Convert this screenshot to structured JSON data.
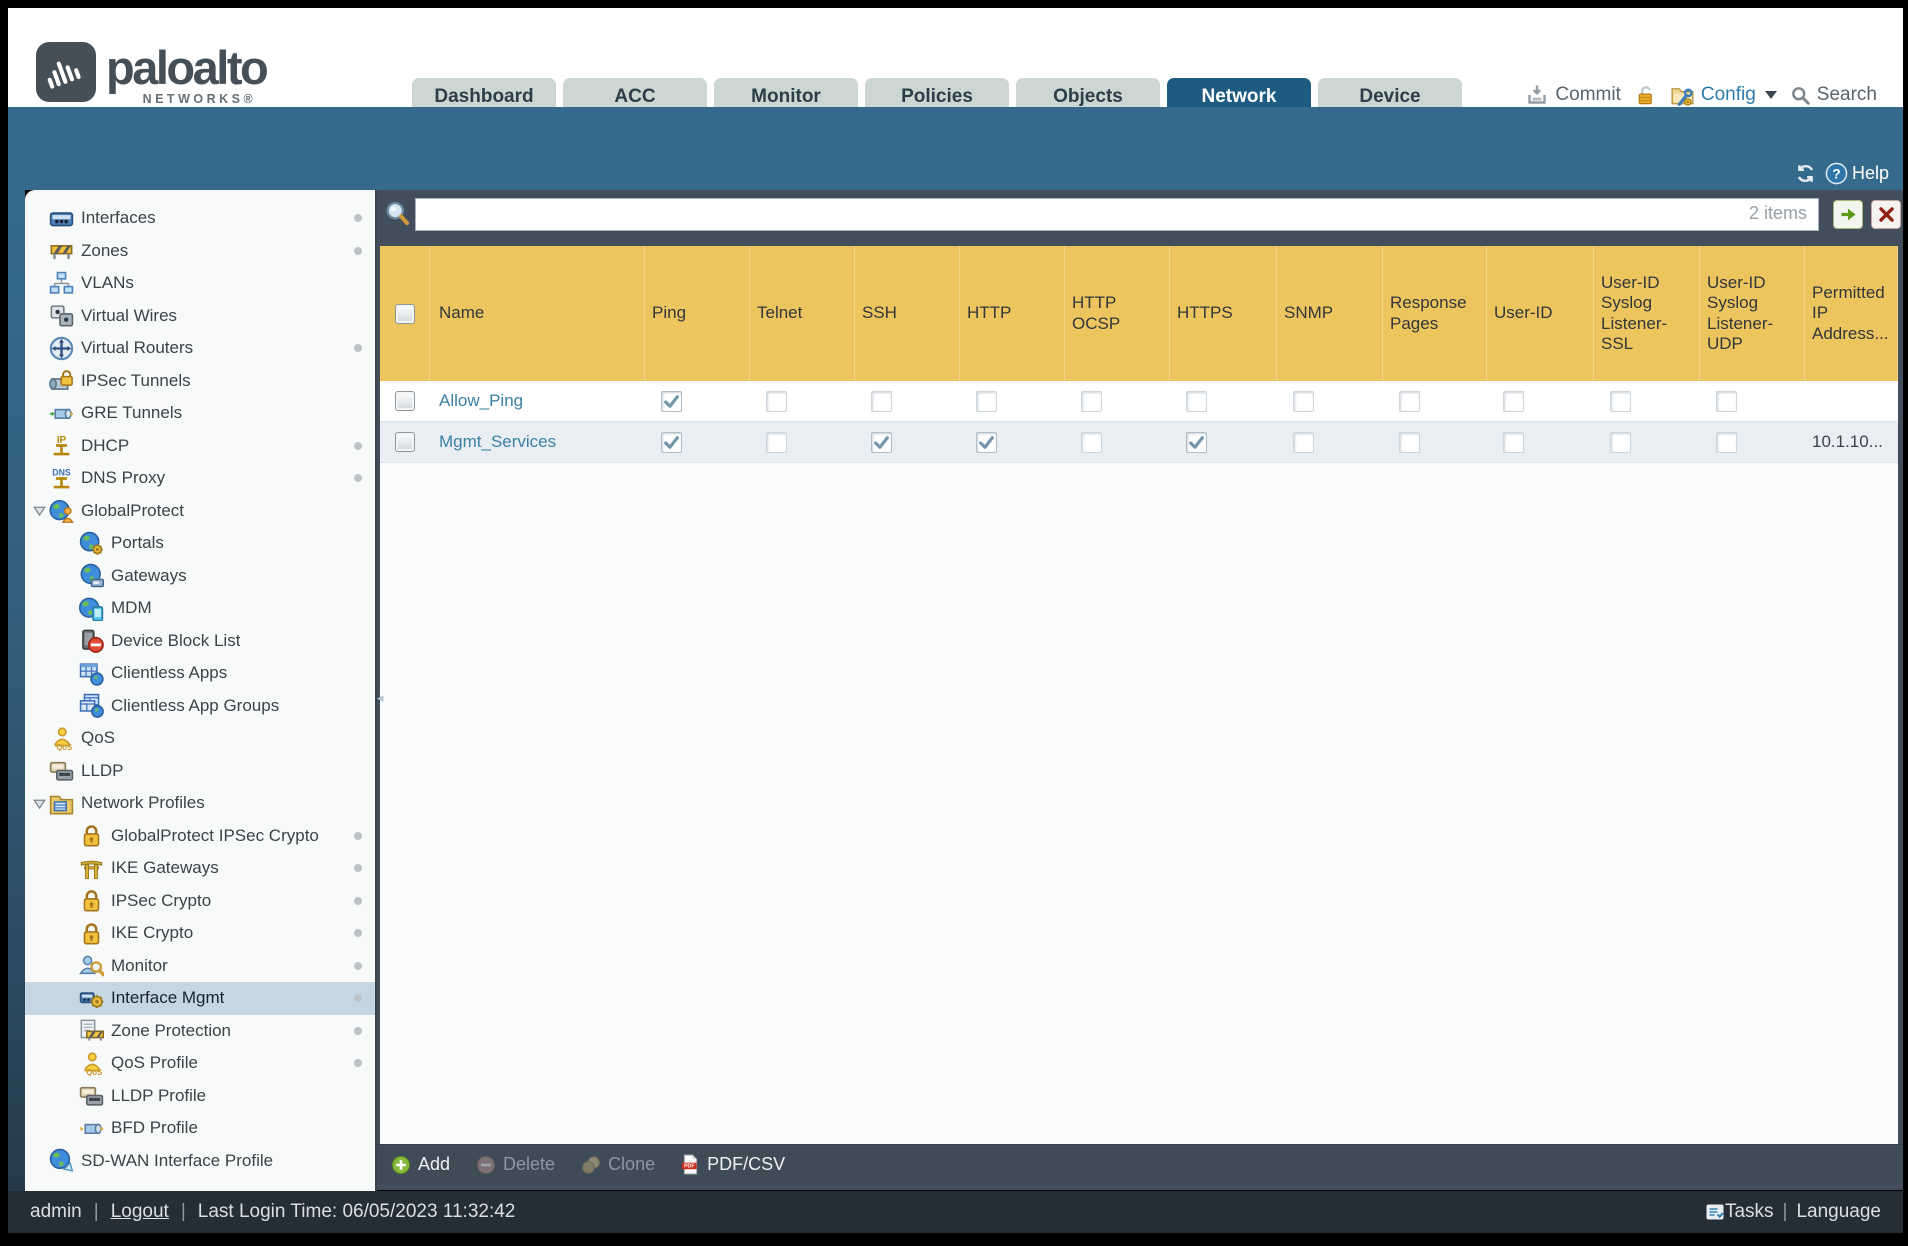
{
  "brand": {
    "name": "paloalto",
    "sub": "NETWORKS®"
  },
  "tabs": [
    {
      "label": "Dashboard"
    },
    {
      "label": "ACC"
    },
    {
      "label": "Monitor"
    },
    {
      "label": "Policies"
    },
    {
      "label": "Objects"
    },
    {
      "label": "Network",
      "active": true
    },
    {
      "label": "Device"
    }
  ],
  "top_actions": {
    "commit": "Commit",
    "config": "Config",
    "search": "Search"
  },
  "band": {
    "help": "Help"
  },
  "sidebar": {
    "items": [
      {
        "label": "Interfaces",
        "icon": "ethernet",
        "dot": true
      },
      {
        "label": "Zones",
        "icon": "barrier",
        "dot": true
      },
      {
        "label": "VLANs",
        "icon": "vlans"
      },
      {
        "label": "Virtual Wires",
        "icon": "vwires"
      },
      {
        "label": "Virtual Routers",
        "icon": "vrouters",
        "dot": true
      },
      {
        "label": "IPSec Tunnels",
        "icon": "ipsec-tunnel"
      },
      {
        "label": "GRE Tunnels",
        "icon": "gre-tunnel"
      },
      {
        "label": "DHCP",
        "icon": "dhcp",
        "dot": true
      },
      {
        "label": "DNS Proxy",
        "icon": "dns-proxy",
        "dot": true
      },
      {
        "label": "GlobalProtect",
        "icon": "globalprotect",
        "expander": true
      },
      {
        "label": "Portals",
        "icon": "portals",
        "level": 1
      },
      {
        "label": "Gateways",
        "icon": "gateways",
        "level": 1
      },
      {
        "label": "MDM",
        "icon": "mdm",
        "level": 1
      },
      {
        "label": "Device Block List",
        "icon": "device-block",
        "level": 1
      },
      {
        "label": "Clientless Apps",
        "icon": "clientless-apps",
        "level": 1
      },
      {
        "label": "Clientless App Groups",
        "icon": "clientless-groups",
        "level": 1
      },
      {
        "label": "QoS",
        "icon": "qos"
      },
      {
        "label": "LLDP",
        "icon": "lldp"
      },
      {
        "label": "Network Profiles",
        "icon": "net-profiles",
        "expander": true
      },
      {
        "label": "GlobalProtect IPSec Crypto",
        "icon": "padlock",
        "level": 1,
        "dot": true
      },
      {
        "label": "IKE Gateways",
        "icon": "ike",
        "level": 1,
        "dot": true
      },
      {
        "label": "IPSec Crypto",
        "icon": "padlock",
        "level": 1,
        "dot": true
      },
      {
        "label": "IKE Crypto",
        "icon": "padlock",
        "level": 1,
        "dot": true
      },
      {
        "label": "Monitor",
        "icon": "monitor-search",
        "level": 1,
        "dot": true
      },
      {
        "label": "Interface Mgmt",
        "icon": "iface-mgmt",
        "level": 1,
        "selected": true,
        "dot": true
      },
      {
        "label": "Zone Protection",
        "icon": "zone-protect",
        "level": 1,
        "dot": true
      },
      {
        "label": "QoS Profile",
        "icon": "qos",
        "level": 1,
        "dot": true
      },
      {
        "label": "LLDP Profile",
        "icon": "lldp",
        "level": 1
      },
      {
        "label": "BFD Profile",
        "icon": "bfd",
        "level": 1
      },
      {
        "label": "SD-WAN Interface Profile",
        "icon": "sdwan"
      }
    ]
  },
  "search": {
    "count": "2 items"
  },
  "table": {
    "columns": [
      {
        "id": "select",
        "label": ""
      },
      {
        "id": "name",
        "label": "Name"
      },
      {
        "id": "ping",
        "label": "Ping"
      },
      {
        "id": "telnet",
        "label": "Telnet"
      },
      {
        "id": "ssh",
        "label": "SSH"
      },
      {
        "id": "http",
        "label": "HTTP"
      },
      {
        "id": "http_ocsp",
        "label": "HTTP OCSP"
      },
      {
        "id": "https",
        "label": "HTTPS"
      },
      {
        "id": "snmp",
        "label": "SNMP"
      },
      {
        "id": "response_pages",
        "label": "Response Pages"
      },
      {
        "id": "user_id",
        "label": "User-ID"
      },
      {
        "id": "uid_syslog_ssl",
        "label": "User-ID Syslog Listener-SSL"
      },
      {
        "id": "uid_syslog_udp",
        "label": "User-ID Syslog Listener-UDP"
      },
      {
        "id": "permitted_ip",
        "label": "Permitted IP Address..."
      }
    ],
    "rows": [
      {
        "name": "Allow_Ping",
        "checks": {
          "ping": true,
          "telnet": false,
          "ssh": false,
          "http": false,
          "http_ocsp": false,
          "https": false,
          "snmp": false,
          "response_pages": false,
          "user_id": false,
          "uid_syslog_ssl": false,
          "uid_syslog_udp": false
        },
        "permitted_ip": ""
      },
      {
        "name": "Mgmt_Services",
        "checks": {
          "ping": true,
          "telnet": false,
          "ssh": true,
          "http": true,
          "http_ocsp": false,
          "https": true,
          "snmp": false,
          "response_pages": false,
          "user_id": false,
          "uid_syslog_ssl": false,
          "uid_syslog_udp": false
        },
        "permitted_ip": "10.1.10..."
      }
    ]
  },
  "action_bar": {
    "buttons": [
      {
        "id": "add",
        "label": "Add",
        "enabled": true
      },
      {
        "id": "delete",
        "label": "Delete",
        "enabled": false
      },
      {
        "id": "clone",
        "label": "Clone",
        "enabled": false
      },
      {
        "id": "pdfcsv",
        "label": "PDF/CSV",
        "enabled": true
      }
    ]
  },
  "footer": {
    "user": "admin",
    "logout": "Logout",
    "last_login": "Last Login Time: 06/05/2023 11:32:42",
    "tasks": "Tasks",
    "language": "Language"
  }
}
